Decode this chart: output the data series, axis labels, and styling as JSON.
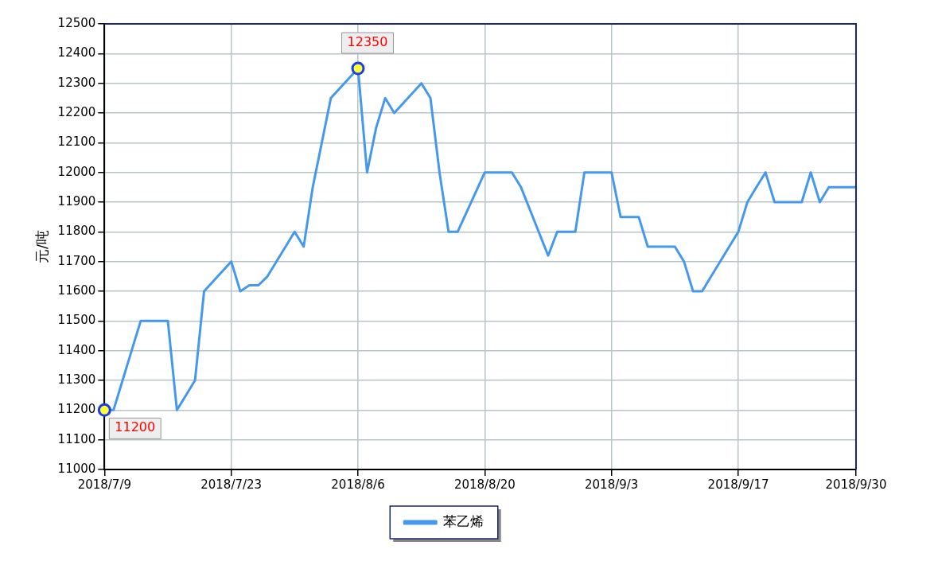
{
  "chart_data": {
    "type": "line",
    "ylabel": "元/吨",
    "legend": "bottom",
    "grid": true,
    "marker": "none",
    "line_style": "solid",
    "xlim": [
      "2018-07-09",
      "2018-09-30"
    ],
    "xticks": [
      {
        "value": "2018-07-09",
        "label": "2018/7/9"
      },
      {
        "value": "2018-07-23",
        "label": "2018/7/23"
      },
      {
        "value": "2018-08-06",
        "label": "2018/8/6"
      },
      {
        "value": "2018-08-20",
        "label": "2018/8/20"
      },
      {
        "value": "2018-09-03",
        "label": "2018/9/3"
      },
      {
        "value": "2018-09-17",
        "label": "2018/9/17"
      },
      {
        "value": "2018-09-30",
        "label": "2018/9/30"
      }
    ],
    "ylim": [
      11000,
      12500
    ],
    "yticks": [
      11000,
      11100,
      11200,
      11300,
      11400,
      11500,
      11600,
      11700,
      11800,
      11900,
      12000,
      12100,
      12200,
      12300,
      12400,
      12500
    ],
    "x": [
      "2018-07-09",
      "2018-07-10",
      "2018-07-11",
      "2018-07-12",
      "2018-07-13",
      "2018-07-16",
      "2018-07-17",
      "2018-07-18",
      "2018-07-19",
      "2018-07-20",
      "2018-07-23",
      "2018-07-24",
      "2018-07-25",
      "2018-07-26",
      "2018-07-27",
      "2018-07-30",
      "2018-07-31",
      "2018-08-01",
      "2018-08-02",
      "2018-08-03",
      "2018-08-06",
      "2018-08-07",
      "2018-08-08",
      "2018-08-09",
      "2018-08-10",
      "2018-08-13",
      "2018-08-14",
      "2018-08-15",
      "2018-08-16",
      "2018-08-17",
      "2018-08-20",
      "2018-08-21",
      "2018-08-22",
      "2018-08-23",
      "2018-08-24",
      "2018-08-27",
      "2018-08-28",
      "2018-08-29",
      "2018-08-30",
      "2018-08-31",
      "2018-09-03",
      "2018-09-04",
      "2018-09-05",
      "2018-09-06",
      "2018-09-07",
      "2018-09-10",
      "2018-09-11",
      "2018-09-12",
      "2018-09-13",
      "2018-09-14",
      "2018-09-17",
      "2018-09-18",
      "2018-09-19",
      "2018-09-20",
      "2018-09-21",
      "2018-09-24",
      "2018-09-25",
      "2018-09-26",
      "2018-09-27",
      "2018-09-28",
      "2018-09-30"
    ],
    "series": [
      {
        "name": "苯乙烯",
        "color": "#4499ee",
        "values": [
          11200,
          11200,
          11300,
          11400,
          11500,
          11500,
          11200,
          11250,
          11300,
          11600,
          11700,
          11600,
          11620,
          11620,
          11650,
          11800,
          11750,
          11950,
          12100,
          12250,
          12350,
          12000,
          12150,
          12250,
          12200,
          12300,
          12250,
          12000,
          11800,
          11800,
          12000,
          12000,
          12000,
          12000,
          11950,
          11720,
          11800,
          11800,
          11800,
          12000,
          12000,
          11850,
          11850,
          11850,
          11750,
          11750,
          11700,
          11600,
          11600,
          11650,
          11800,
          11900,
          11950,
          12000,
          11900,
          11900,
          12000,
          11900,
          11950,
          11950,
          11950
        ]
      }
    ],
    "annotations": [
      {
        "text": "11200",
        "x": "2018-07-09",
        "y": 11200
      },
      {
        "text": "12350",
        "x": "2018-08-06",
        "y": 12350
      }
    ]
  }
}
